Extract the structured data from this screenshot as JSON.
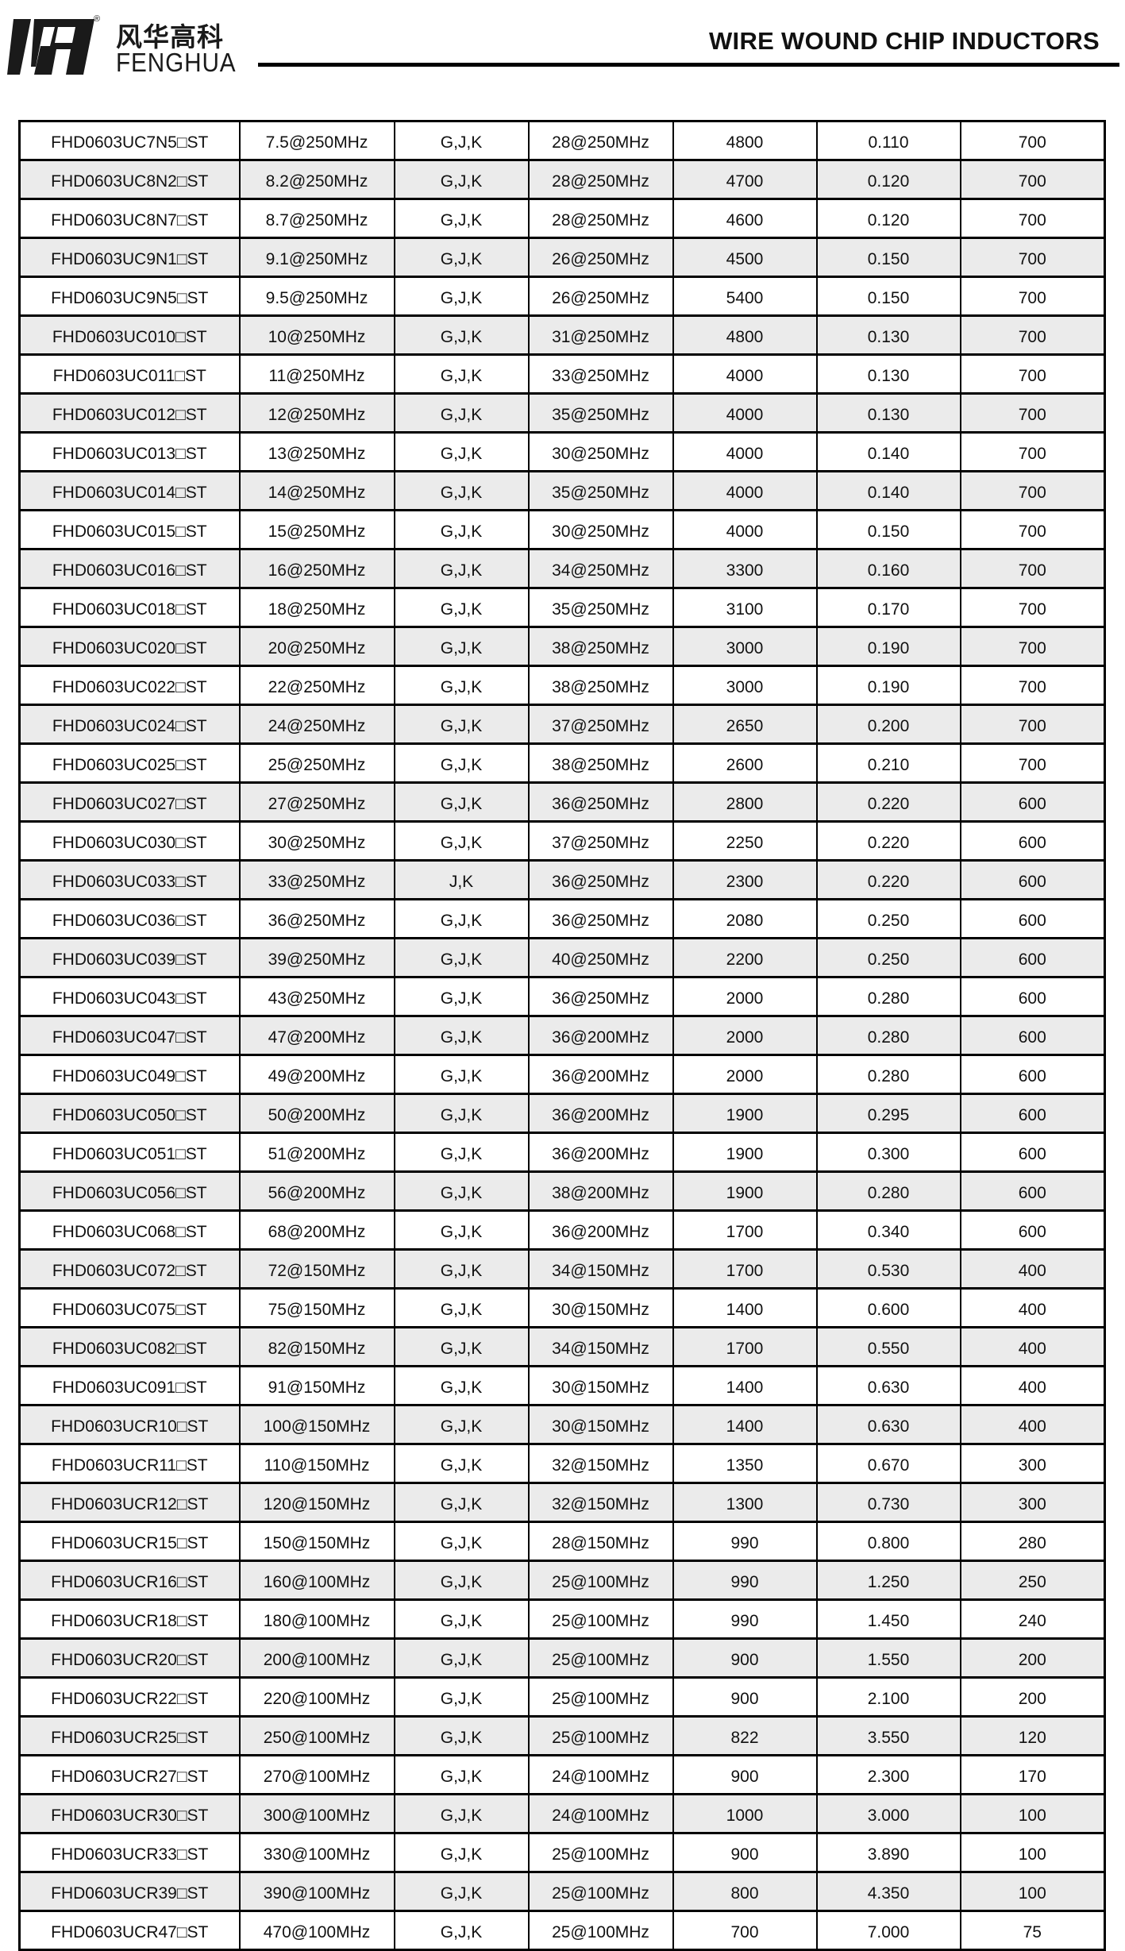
{
  "header": {
    "brand_cn": "风华高科",
    "brand_en": "FENGHUA",
    "registered_mark": "®",
    "title": "WIRE WOUND CHIP INDUCTORS"
  },
  "colors": {
    "stripe": "#ebebeb",
    "border": "#000000"
  },
  "rows": [
    [
      "FHD0603UC7N5□ST",
      "7.5@250MHz",
      "G,J,K",
      "28@250MHz",
      "4800",
      "0.110",
      "700"
    ],
    [
      "FHD0603UC8N2□ST",
      "8.2@250MHz",
      "G,J,K",
      "28@250MHz",
      "4700",
      "0.120",
      "700"
    ],
    [
      "FHD0603UC8N7□ST",
      "8.7@250MHz",
      "G,J,K",
      "28@250MHz",
      "4600",
      "0.120",
      "700"
    ],
    [
      "FHD0603UC9N1□ST",
      "9.1@250MHz",
      "G,J,K",
      "26@250MHz",
      "4500",
      "0.150",
      "700"
    ],
    [
      "FHD0603UC9N5□ST",
      "9.5@250MHz",
      "G,J,K",
      "26@250MHz",
      "5400",
      "0.150",
      "700"
    ],
    [
      "FHD0603UC010□ST",
      "10@250MHz",
      "G,J,K",
      "31@250MHz",
      "4800",
      "0.130",
      "700"
    ],
    [
      "FHD0603UC011□ST",
      "11@250MHz",
      "G,J,K",
      "33@250MHz",
      "4000",
      "0.130",
      "700"
    ],
    [
      "FHD0603UC012□ST",
      "12@250MHz",
      "G,J,K",
      "35@250MHz",
      "4000",
      "0.130",
      "700"
    ],
    [
      "FHD0603UC013□ST",
      "13@250MHz",
      "G,J,K",
      "30@250MHz",
      "4000",
      "0.140",
      "700"
    ],
    [
      "FHD0603UC014□ST",
      "14@250MHz",
      "G,J,K",
      "35@250MHz",
      "4000",
      "0.140",
      "700"
    ],
    [
      "FHD0603UC015□ST",
      "15@250MHz",
      "G,J,K",
      "30@250MHz",
      "4000",
      "0.150",
      "700"
    ],
    [
      "FHD0603UC016□ST",
      "16@250MHz",
      "G,J,K",
      "34@250MHz",
      "3300",
      "0.160",
      "700"
    ],
    [
      "FHD0603UC018□ST",
      "18@250MHz",
      "G,J,K",
      "35@250MHz",
      "3100",
      "0.170",
      "700"
    ],
    [
      "FHD0603UC020□ST",
      "20@250MHz",
      "G,J,K",
      "38@250MHz",
      "3000",
      "0.190",
      "700"
    ],
    [
      "FHD0603UC022□ST",
      "22@250MHz",
      "G,J,K",
      "38@250MHz",
      "3000",
      "0.190",
      "700"
    ],
    [
      "FHD0603UC024□ST",
      "24@250MHz",
      "G,J,K",
      "37@250MHz",
      "2650",
      "0.200",
      "700"
    ],
    [
      "FHD0603UC025□ST",
      "25@250MHz",
      "G,J,K",
      "38@250MHz",
      "2600",
      "0.210",
      "700"
    ],
    [
      "FHD0603UC027□ST",
      "27@250MHz",
      "G,J,K",
      "36@250MHz",
      "2800",
      "0.220",
      "600"
    ],
    [
      "FHD0603UC030□ST",
      "30@250MHz",
      "G,J,K",
      "37@250MHz",
      "2250",
      "0.220",
      "600"
    ],
    [
      "FHD0603UC033□ST",
      "33@250MHz",
      "J,K",
      "36@250MHz",
      "2300",
      "0.220",
      "600"
    ],
    [
      "FHD0603UC036□ST",
      "36@250MHz",
      "G,J,K",
      "36@250MHz",
      "2080",
      "0.250",
      "600"
    ],
    [
      "FHD0603UC039□ST",
      "39@250MHz",
      "G,J,K",
      "40@250MHz",
      "2200",
      "0.250",
      "600"
    ],
    [
      "FHD0603UC043□ST",
      "43@250MHz",
      "G,J,K",
      "36@250MHz",
      "2000",
      "0.280",
      "600"
    ],
    [
      "FHD0603UC047□ST",
      "47@200MHz",
      "G,J,K",
      "36@200MHz",
      "2000",
      "0.280",
      "600"
    ],
    [
      "FHD0603UC049□ST",
      "49@200MHz",
      "G,J,K",
      "36@200MHz",
      "2000",
      "0.280",
      "600"
    ],
    [
      "FHD0603UC050□ST",
      "50@200MHz",
      "G,J,K",
      "36@200MHz",
      "1900",
      "0.295",
      "600"
    ],
    [
      "FHD0603UC051□ST",
      "51@200MHz",
      "G,J,K",
      "36@200MHz",
      "1900",
      "0.300",
      "600"
    ],
    [
      "FHD0603UC056□ST",
      "56@200MHz",
      "G,J,K",
      "38@200MHz",
      "1900",
      "0.280",
      "600"
    ],
    [
      "FHD0603UC068□ST",
      "68@200MHz",
      "G,J,K",
      "36@200MHz",
      "1700",
      "0.340",
      "600"
    ],
    [
      "FHD0603UC072□ST",
      "72@150MHz",
      "G,J,K",
      "34@150MHz",
      "1700",
      "0.530",
      "400"
    ],
    [
      "FHD0603UC075□ST",
      "75@150MHz",
      "G,J,K",
      "30@150MHz",
      "1400",
      "0.600",
      "400"
    ],
    [
      "FHD0603UC082□ST",
      "82@150MHz",
      "G,J,K",
      "34@150MHz",
      "1700",
      "0.550",
      "400"
    ],
    [
      "FHD0603UC091□ST",
      "91@150MHz",
      "G,J,K",
      "30@150MHz",
      "1400",
      "0.630",
      "400"
    ],
    [
      "FHD0603UCR10□ST",
      "100@150MHz",
      "G,J,K",
      "30@150MHz",
      "1400",
      "0.630",
      "400"
    ],
    [
      "FHD0603UCR11□ST",
      "110@150MHz",
      "G,J,K",
      "32@150MHz",
      "1350",
      "0.670",
      "300"
    ],
    [
      "FHD0603UCR12□ST",
      "120@150MHz",
      "G,J,K",
      "32@150MHz",
      "1300",
      "0.730",
      "300"
    ],
    [
      "FHD0603UCR15□ST",
      "150@150MHz",
      "G,J,K",
      "28@150MHz",
      "990",
      "0.800",
      "280"
    ],
    [
      "FHD0603UCR16□ST",
      "160@100MHz",
      "G,J,K",
      "25@100MHz",
      "990",
      "1.250",
      "250"
    ],
    [
      "FHD0603UCR18□ST",
      "180@100MHz",
      "G,J,K",
      "25@100MHz",
      "990",
      "1.450",
      "240"
    ],
    [
      "FHD0603UCR20□ST",
      "200@100MHz",
      "G,J,K",
      "25@100MHz",
      "900",
      "1.550",
      "200"
    ],
    [
      "FHD0603UCR22□ST",
      "220@100MHz",
      "G,J,K",
      "25@100MHz",
      "900",
      "2.100",
      "200"
    ],
    [
      "FHD0603UCR25□ST",
      "250@100MHz",
      "G,J,K",
      "25@100MHz",
      "822",
      "3.550",
      "120"
    ],
    [
      "FHD0603UCR27□ST",
      "270@100MHz",
      "G,J,K",
      "24@100MHz",
      "900",
      "2.300",
      "170"
    ],
    [
      "FHD0603UCR30□ST",
      "300@100MHz",
      "G,J,K",
      "24@100MHz",
      "1000",
      "3.000",
      "100"
    ],
    [
      "FHD0603UCR33□ST",
      "330@100MHz",
      "G,J,K",
      "25@100MHz",
      "900",
      "3.890",
      "100"
    ],
    [
      "FHD0603UCR39□ST",
      "390@100MHz",
      "G,J,K",
      "25@100MHz",
      "800",
      "4.350",
      "100"
    ],
    [
      "FHD0603UCR47□ST",
      "470@100MHz",
      "G,J,K",
      "25@100MHz",
      "700",
      "7.000",
      "75"
    ]
  ]
}
